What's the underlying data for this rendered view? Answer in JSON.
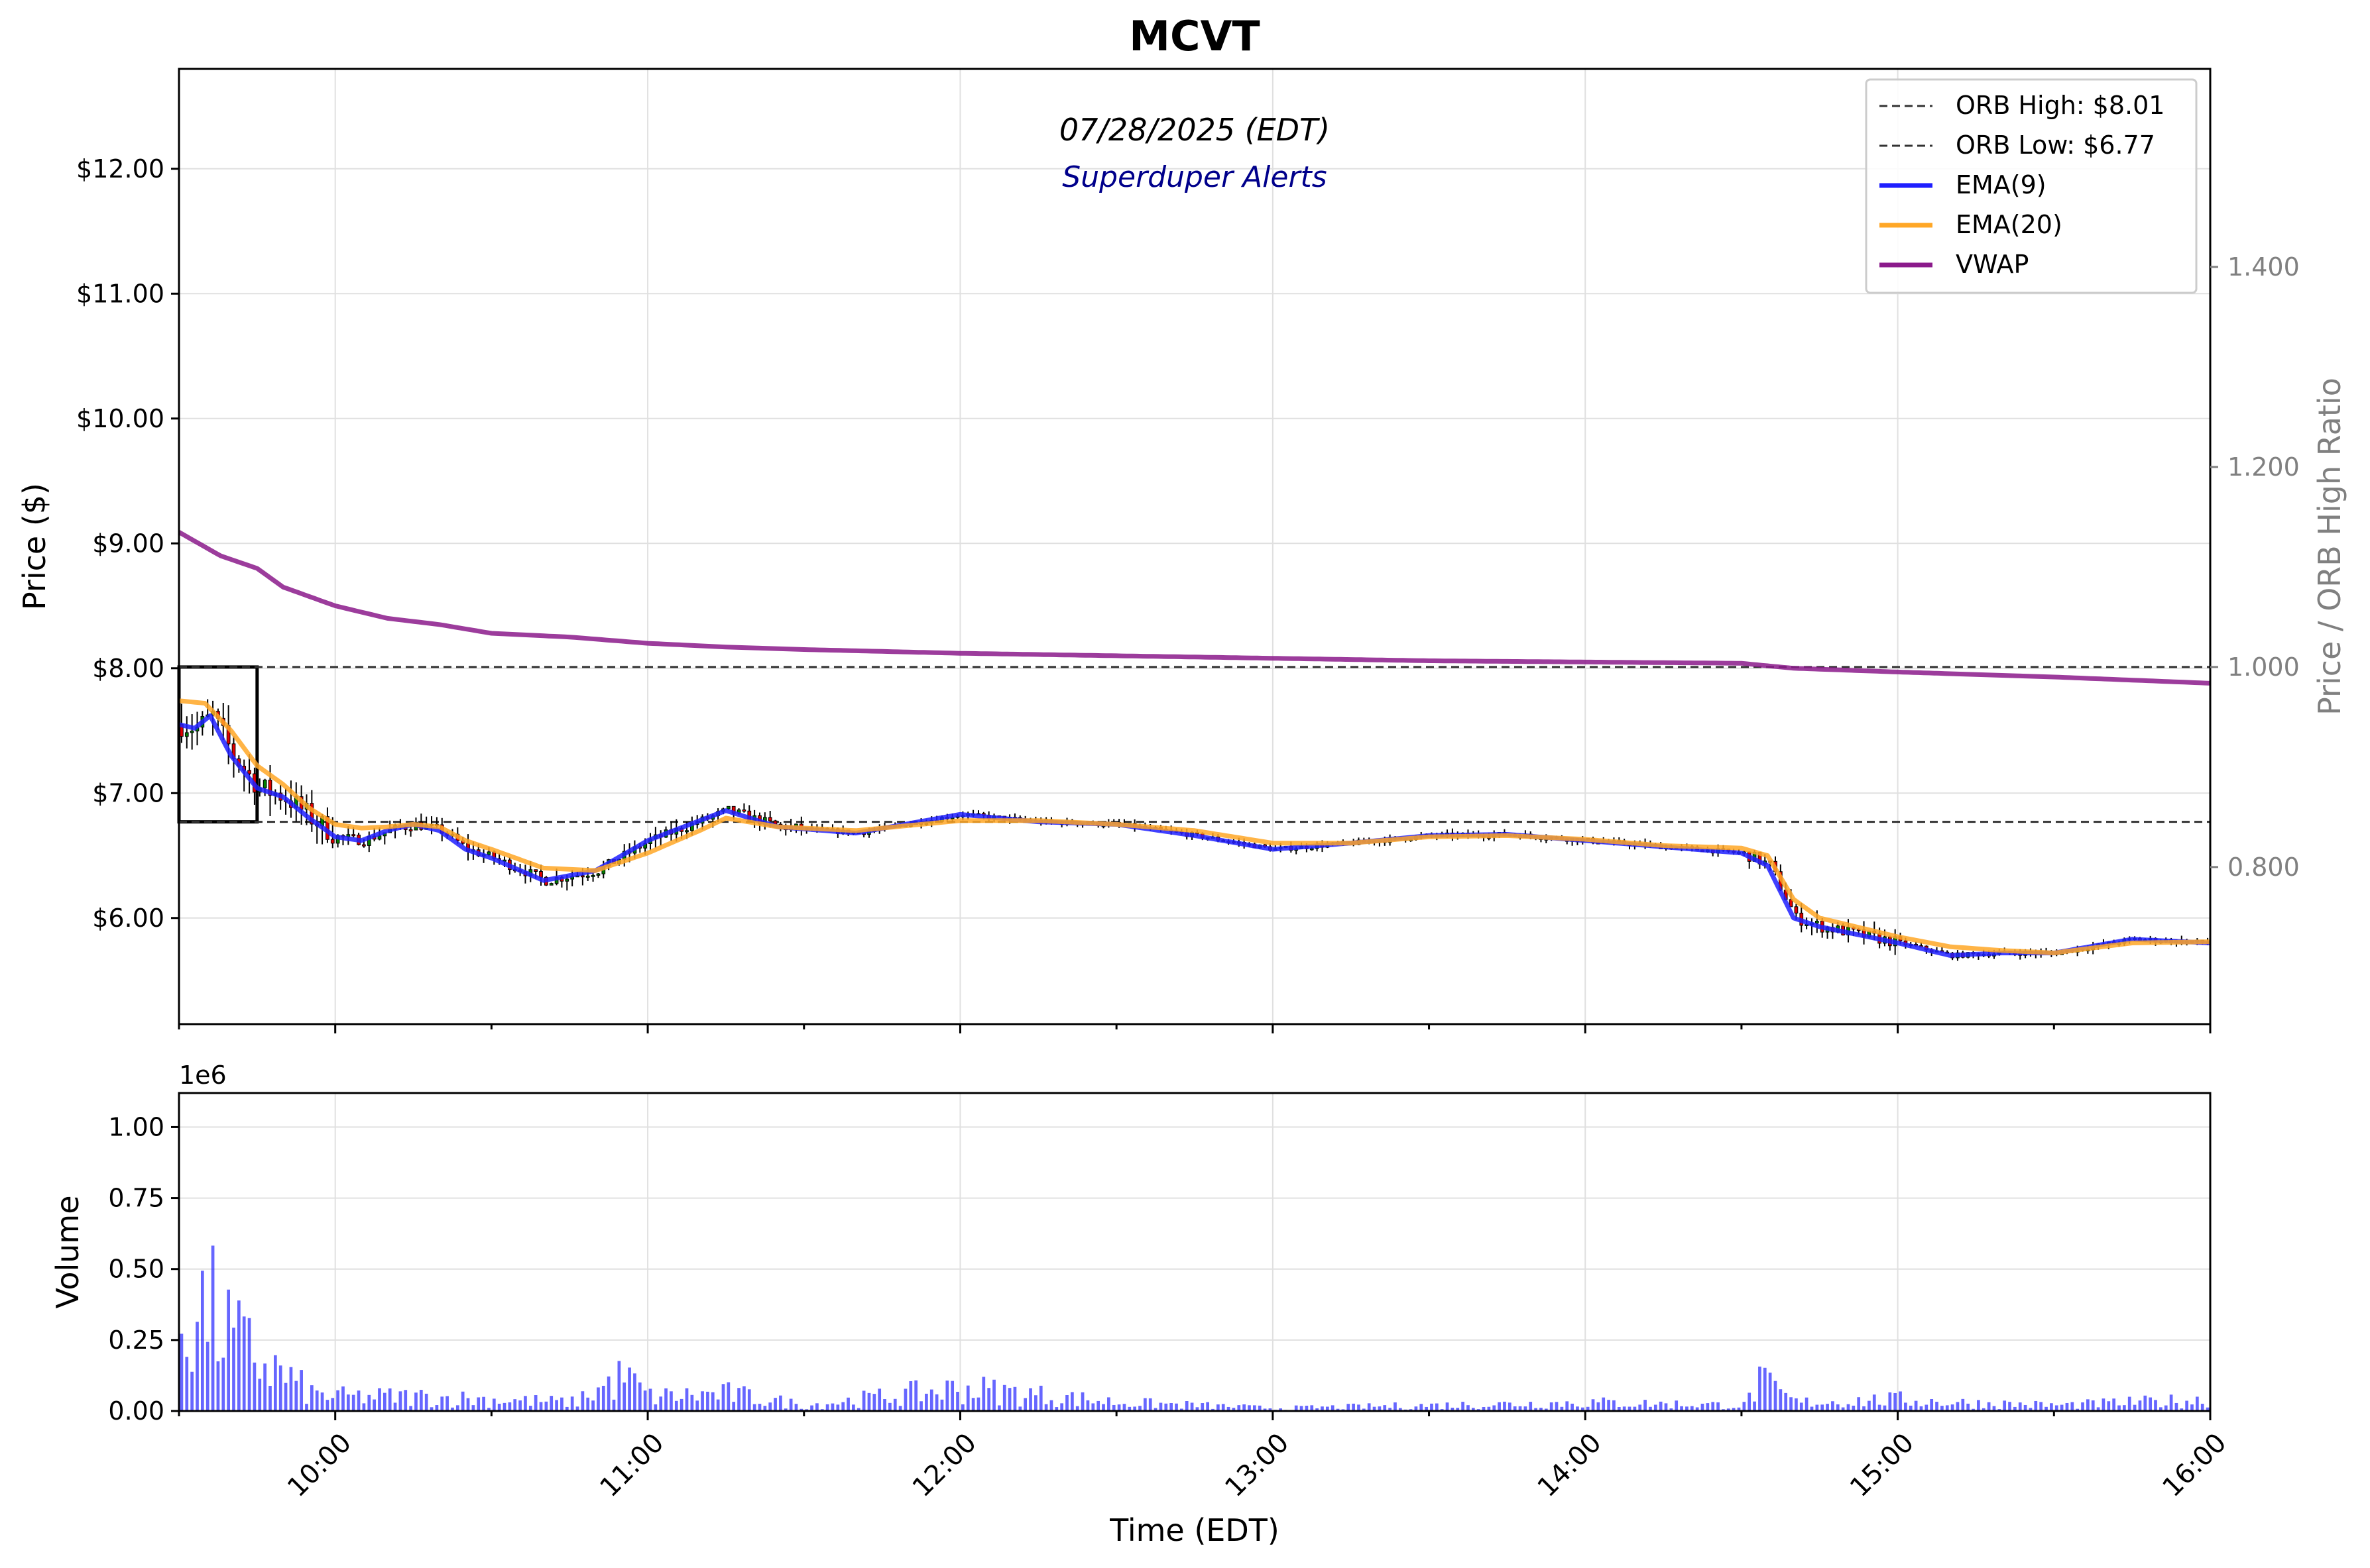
{
  "chart_data": {
    "type": "candlestick",
    "title": "MCVT",
    "subtitle": "07/28/2025 (EDT)",
    "subtitle2": "Superduper Alerts",
    "price_panel": {
      "ylabel": "Price ($)",
      "ylabel_right": "Price / ORB High Ratio",
      "ylim": [
        5.15,
        12.8
      ],
      "yticks": [
        6,
        7,
        8,
        9,
        10,
        11,
        12
      ],
      "ytick_labels": [
        "$6.00",
        "$7.00",
        "$8.00",
        "$9.00",
        "$10.00",
        "$11.00",
        "$12.00"
      ],
      "right_ticks": [
        0.8,
        1.0,
        1.2,
        1.4
      ],
      "right_tick_labels": [
        "0.800",
        "1.000",
        "1.200",
        "1.400"
      ],
      "orb_high": 8.01,
      "orb_low": 6.77,
      "orb_window": [
        "09:30",
        "09:45"
      ],
      "grid": true
    },
    "volume_panel": {
      "ylabel": "Volume",
      "scale_label": "1e6",
      "ylim": [
        0,
        1.12
      ],
      "yticks": [
        0,
        0.25,
        0.5,
        0.75,
        1.0
      ],
      "ytick_labels": [
        "0.00",
        "0.25",
        "0.50",
        "0.75",
        "1.00"
      ],
      "color": "#0000ff"
    },
    "x_axis": {
      "xlabel": "Time (EDT)",
      "xlim": [
        "09:30",
        "16:00"
      ],
      "ticks": [
        "10:00",
        "11:00",
        "12:00",
        "13:00",
        "14:00",
        "15:00",
        "16:00"
      ]
    },
    "legend": {
      "position": "top-right",
      "entries": [
        {
          "label": "ORB High: $8.01",
          "style": "dashed",
          "color": "#333333"
        },
        {
          "label": "ORB Low: $6.77",
          "style": "dashed",
          "color": "#333333"
        },
        {
          "label": "EMA(9)",
          "style": "solid",
          "color": "#1f1fff"
        },
        {
          "label": "EMA(20)",
          "style": "solid",
          "color": "#ffa726"
        },
        {
          "label": "VWAP",
          "style": "solid",
          "color": "#8b1a8b"
        }
      ]
    },
    "series": [
      {
        "name": "EMA(9)",
        "x": [
          "09:30",
          "09:33",
          "09:36",
          "09:40",
          "09:45",
          "09:50",
          "09:55",
          "10:00",
          "10:05",
          "10:10",
          "10:15",
          "10:20",
          "10:25",
          "10:30",
          "10:40",
          "10:50",
          "11:00",
          "11:10",
          "11:15",
          "11:25",
          "11:40",
          "12:00",
          "12:15",
          "12:30",
          "12:45",
          "13:00",
          "13:15",
          "13:30",
          "13:45",
          "14:00",
          "14:15",
          "14:30",
          "14:35",
          "14:40",
          "14:45",
          "15:00",
          "15:10",
          "15:20",
          "15:30",
          "15:45",
          "16:00"
        ],
        "y": [
          7.55,
          7.52,
          7.62,
          7.3,
          7.04,
          6.97,
          6.8,
          6.65,
          6.62,
          6.7,
          6.75,
          6.7,
          6.55,
          6.48,
          6.3,
          6.38,
          6.62,
          6.78,
          6.86,
          6.73,
          6.68,
          6.83,
          6.77,
          6.75,
          6.66,
          6.55,
          6.6,
          6.66,
          6.67,
          6.62,
          6.57,
          6.52,
          6.42,
          6.0,
          5.93,
          5.8,
          5.7,
          5.72,
          5.72,
          5.83,
          5.8
        ]
      },
      {
        "name": "EMA(20)",
        "x": [
          "09:30",
          "09:35",
          "09:40",
          "09:45",
          "09:50",
          "09:55",
          "10:00",
          "10:05",
          "10:10",
          "10:15",
          "10:20",
          "10:25",
          "10:30",
          "10:40",
          "10:50",
          "11:00",
          "11:10",
          "11:15",
          "11:25",
          "11:40",
          "12:00",
          "12:15",
          "12:30",
          "12:45",
          "13:00",
          "13:15",
          "13:30",
          "13:45",
          "14:00",
          "14:15",
          "14:30",
          "14:35",
          "14:40",
          "14:45",
          "15:00",
          "15:10",
          "15:20",
          "15:30",
          "15:45",
          "16:00"
        ],
        "y": [
          7.74,
          7.72,
          7.5,
          7.22,
          7.07,
          6.88,
          6.75,
          6.72,
          6.73,
          6.75,
          6.73,
          6.62,
          6.55,
          6.4,
          6.38,
          6.52,
          6.7,
          6.8,
          6.73,
          6.7,
          6.78,
          6.78,
          6.75,
          6.7,
          6.6,
          6.6,
          6.65,
          6.66,
          6.63,
          6.58,
          6.56,
          6.5,
          6.15,
          6.0,
          5.85,
          5.77,
          5.74,
          5.72,
          5.8,
          5.81
        ]
      },
      {
        "name": "VWAP",
        "x": [
          "09:30",
          "09:38",
          "09:45",
          "09:50",
          "10:00",
          "10:10",
          "10:20",
          "10:30",
          "10:45",
          "11:00",
          "11:15",
          "11:30",
          "12:00",
          "12:30",
          "13:00",
          "13:30",
          "14:00",
          "14:30",
          "14:40",
          "15:00",
          "15:30",
          "16:00"
        ],
        "y": [
          9.09,
          8.9,
          8.8,
          8.65,
          8.5,
          8.4,
          8.35,
          8.28,
          8.25,
          8.2,
          8.17,
          8.15,
          8.12,
          8.1,
          8.08,
          8.06,
          8.05,
          8.04,
          8.0,
          7.97,
          7.93,
          7.88
        ]
      }
    ],
    "candles_anchor": {
      "x": [
        "09:30",
        "09:33",
        "09:36",
        "09:40",
        "09:45",
        "09:50",
        "09:55",
        "10:00",
        "10:05",
        "10:10",
        "10:15",
        "10:20",
        "10:25",
        "10:30",
        "10:40",
        "10:50",
        "11:00",
        "11:10",
        "11:15",
        "11:25",
        "11:40",
        "12:00",
        "12:15",
        "12:30",
        "12:45",
        "13:00",
        "13:15",
        "13:30",
        "13:45",
        "14:00",
        "14:15",
        "14:30",
        "14:35",
        "14:40",
        "14:45",
        "15:00",
        "15:10",
        "15:20",
        "15:30",
        "15:45",
        "16:00"
      ],
      "close": [
        7.55,
        7.52,
        7.62,
        7.3,
        7.04,
        6.97,
        6.8,
        6.65,
        6.62,
        6.7,
        6.75,
        6.7,
        6.55,
        6.48,
        6.3,
        6.38,
        6.62,
        6.78,
        6.86,
        6.73,
        6.68,
        6.83,
        6.77,
        6.75,
        6.66,
        6.55,
        6.6,
        6.66,
        6.67,
        6.62,
        6.57,
        6.52,
        6.42,
        6.0,
        5.93,
        5.8,
        5.7,
        5.72,
        5.72,
        5.83,
        5.8
      ]
    },
    "volume_anchor": {
      "x": [
        "09:30",
        "09:35",
        "09:40",
        "09:45",
        "09:50",
        "09:55",
        "10:00",
        "10:15",
        "10:30",
        "10:45",
        "10:55",
        "11:00",
        "11:15",
        "11:30",
        "12:00",
        "12:30",
        "13:00",
        "13:30",
        "14:00",
        "14:30",
        "14:33",
        "14:40",
        "15:00",
        "15:10",
        "15:30",
        "16:00"
      ],
      "y": [
        0.33,
        0.36,
        0.25,
        0.18,
        0.12,
        0.06,
        0.05,
        0.05,
        0.04,
        0.03,
        0.12,
        0.05,
        0.06,
        0.02,
        0.08,
        0.03,
        0.01,
        0.02,
        0.03,
        0.02,
        0.1,
        0.03,
        0.04,
        0.03,
        0.02,
        0.04
      ]
    }
  }
}
